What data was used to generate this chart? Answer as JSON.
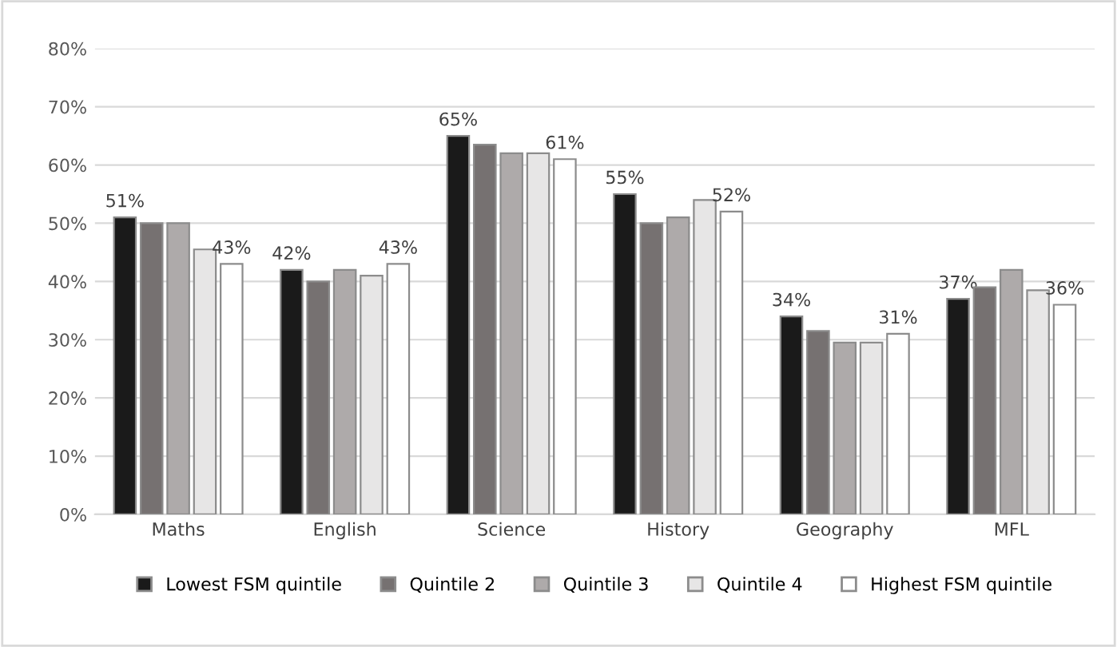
{
  "chart_data": {
    "type": "bar",
    "categories": [
      "Maths",
      "English",
      "Science",
      "History",
      "Geography",
      "MFL"
    ],
    "series": [
      {
        "name": "Lowest FSM quintile",
        "color": "#1a1a1a",
        "values": [
          51,
          42,
          65,
          55,
          34,
          37
        ],
        "value_labels": [
          "51%",
          "42%",
          "65%",
          "55%",
          "34%",
          "37%"
        ]
      },
      {
        "name": "Quintile 2",
        "color": "#767171",
        "values": [
          50,
          40,
          63.5,
          50,
          31.5,
          39
        ]
      },
      {
        "name": "Quintile 3",
        "color": "#aeaaaa",
        "values": [
          50,
          42,
          62,
          51,
          29.5,
          42
        ]
      },
      {
        "name": "Quintile 4",
        "color": "#e7e6e6",
        "values": [
          45.5,
          41,
          62,
          54,
          29.5,
          38.5
        ]
      },
      {
        "name": "Highest FSM quintile",
        "color": "#ffffff",
        "values": [
          43,
          43,
          61,
          52,
          31,
          36
        ],
        "value_labels": [
          "43%",
          "43%",
          "61%",
          "52%",
          "31%",
          "36%"
        ]
      }
    ],
    "ylim": [
      0,
      80
    ],
    "yticks": [
      {
        "value": 0,
        "label": "0%"
      },
      {
        "value": 10,
        "label": "10%"
      },
      {
        "value": 20,
        "label": "20%"
      },
      {
        "value": 30,
        "label": "30%"
      },
      {
        "value": 40,
        "label": "40%"
      },
      {
        "value": 50,
        "label": "50%"
      },
      {
        "value": 60,
        "label": "60%"
      },
      {
        "value": 70,
        "label": "70%"
      },
      {
        "value": 80,
        "label": "80%"
      }
    ],
    "grid": "y",
    "legend": "bottom"
  }
}
